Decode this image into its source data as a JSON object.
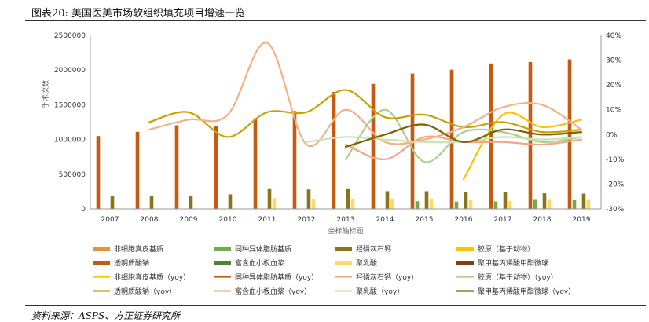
{
  "figure_title": "图表20:  美国医美市场软组织填充项目增速一览",
  "source": "资料来源：ASPS、方正证券研究所",
  "chart_data": {
    "type": "bar",
    "xlabel": "坐标轴标题",
    "ylabel": "手术次数",
    "categories": [
      "2007",
      "2008",
      "2009",
      "2010",
      "2011",
      "2012",
      "2013",
      "2014",
      "2015",
      "2016",
      "2017",
      "2018",
      "2019"
    ],
    "ylim": [
      0,
      2500000
    ],
    "yticks": [
      "0",
      "500000",
      "1000000",
      "1500000",
      "2000000",
      "2500000"
    ],
    "y2lim": [
      -30,
      40
    ],
    "y2ticks": [
      "-30%",
      "-20%",
      "-10%",
      "0%",
      "10%",
      "20%",
      "30%",
      "40%"
    ],
    "bar_series": [
      {
        "name": "非细胞真皮基质",
        "color": "#e8913a",
        "values": [
          null,
          null,
          null,
          null,
          null,
          null,
          null,
          null,
          null,
          null,
          null,
          null,
          null
        ]
      },
      {
        "name": "透明质酸钠",
        "color": "#c55a11",
        "values": [
          1050000,
          1110000,
          1205000,
          1195000,
          1305000,
          1410000,
          1685000,
          1800000,
          1950000,
          2005000,
          2095000,
          2115000,
          2155000
        ]
      },
      {
        "name": "同种异体脂肪基质",
        "color": "#70ad47",
        "values": [
          null,
          null,
          null,
          null,
          null,
          null,
          null,
          null,
          110000,
          105000,
          108000,
          130000,
          125000
        ]
      },
      {
        "name": "富含血小板血浆",
        "color": "#548235",
        "values": [
          null,
          null,
          null,
          null,
          null,
          null,
          null,
          null,
          null,
          null,
          null,
          null,
          null
        ]
      },
      {
        "name": "羟磷灰石钙",
        "color": "#8a7419",
        "values": [
          180000,
          180000,
          190000,
          210000,
          285000,
          280000,
          285000,
          255000,
          255000,
          245000,
          240000,
          225000,
          220000
        ]
      },
      {
        "name": "聚乳酸",
        "color": "#ffd966",
        "values": [
          null,
          null,
          null,
          null,
          155000,
          145000,
          145000,
          140000,
          135000,
          125000,
          115000,
          130000,
          125000
        ]
      },
      {
        "name": "胶原（基于动物）",
        "color": "#ffc000",
        "values": [
          null,
          null,
          null,
          null,
          null,
          null,
          null,
          null,
          null,
          null,
          null,
          null,
          null
        ]
      },
      {
        "name": "聚甲基丙烯酸甲酯微球",
        "color": "#7f3f0f",
        "values": [
          null,
          null,
          null,
          null,
          null,
          null,
          null,
          null,
          null,
          null,
          null,
          null,
          null
        ]
      }
    ],
    "line_series": [
      {
        "name": "非细胞真皮基质（yoy）",
        "color": "#ffc000",
        "values": [
          null,
          null,
          null,
          null,
          null,
          null,
          null,
          null,
          null,
          -18,
          8,
          3,
          6
        ]
      },
      {
        "name": "同种异体脂肪基质（yoy）",
        "color": "#c55a11",
        "values": [
          null,
          null,
          null,
          null,
          null,
          null,
          null,
          null,
          null,
          null,
          null,
          null,
          null
        ]
      },
      {
        "name": "羟磷灰石钙（yoy）",
        "color": "#f4a582",
        "values": [
          null,
          null,
          null,
          null,
          null,
          null,
          -4,
          -10,
          -1,
          -3,
          -3,
          -4,
          -2
        ]
      },
      {
        "name": "胶原（基于动物）（yoy）",
        "color": "#a9d18e",
        "values": [
          null,
          null,
          null,
          null,
          null,
          null,
          -10,
          10,
          -11,
          1,
          1,
          -3,
          -1
        ]
      },
      {
        "name": "透明质酸钠（yoy）",
        "color": "#c8a200",
        "values": [
          null,
          5,
          9,
          -1,
          9,
          9,
          18,
          7,
          8,
          3,
          5,
          1,
          2
        ]
      },
      {
        "name": "富含血小板血浆（yoy）",
        "color": "#f4b183",
        "values": [
          null,
          2,
          6,
          8,
          37,
          -4,
          10,
          -3,
          -2,
          3,
          11,
          12,
          2
        ]
      },
      {
        "name": "聚乳酸（yoy）",
        "color": "#c9e4b4",
        "values": [
          null,
          null,
          null,
          null,
          null,
          -3,
          -1,
          -2,
          -3,
          -3,
          -1,
          -2,
          -1
        ]
      },
      {
        "name": "聚甲基丙烯酸甲酯微球（yoy）",
        "color": "#7f6000",
        "values": [
          null,
          null,
          null,
          null,
          null,
          null,
          -5,
          0,
          4,
          -3,
          2,
          0,
          1
        ]
      }
    ]
  }
}
